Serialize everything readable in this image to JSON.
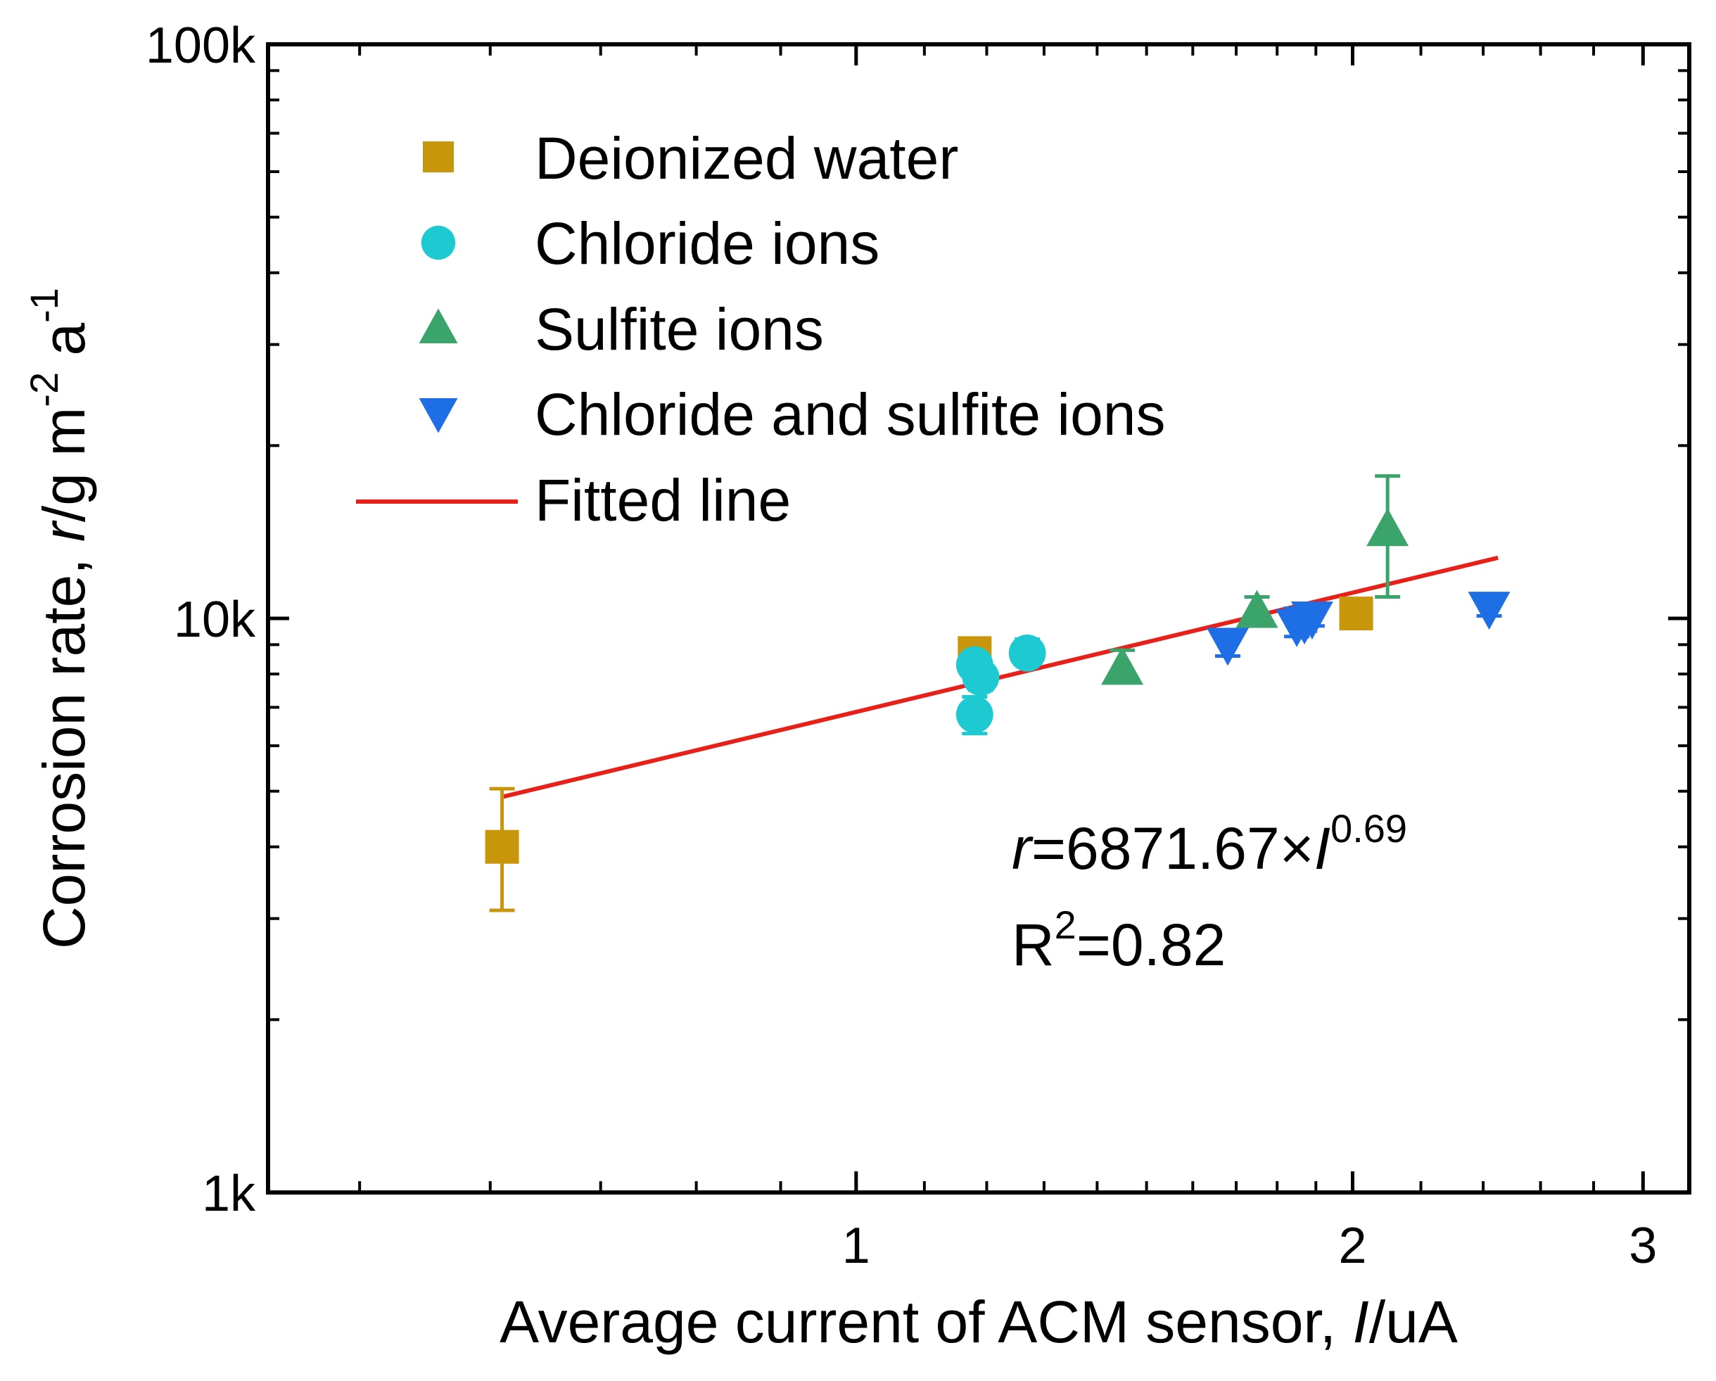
{
  "chart_data": {
    "type": "scatter",
    "scale": {
      "x": "log",
      "y": "log"
    },
    "xlim": [
      0.44,
      3.2
    ],
    "ylim": [
      1000,
      100000
    ],
    "xlabel_parts": [
      "Average current of ACM sensor, ",
      "I",
      "/uA"
    ],
    "ylabel_parts": [
      "Corrosion rate, ",
      "r",
      "/g m",
      "-2",
      " a",
      "-1"
    ],
    "x_ticks": [
      {
        "value": 1,
        "label": "1"
      },
      {
        "value": 2,
        "label": "2"
      },
      {
        "value": 3,
        "label": "3"
      }
    ],
    "y_ticks": [
      {
        "value": 1000,
        "label": "1k"
      },
      {
        "value": 10000,
        "label": "10k"
      },
      {
        "value": 100000,
        "label": "100k"
      }
    ],
    "series": [
      {
        "name": "Deionized water",
        "marker": "square",
        "color": "#c8960a",
        "points": [
          {
            "x": 0.61,
            "y": 4000,
            "err_low": 3100,
            "err_high": 5050
          },
          {
            "x": 1.18,
            "y": 8700,
            "err_low": 8300,
            "err_high": 9100
          },
          {
            "x": 2.01,
            "y": 10200,
            "err_low": 10000,
            "err_high": 10400
          }
        ]
      },
      {
        "name": "Chloride ions",
        "marker": "circle",
        "color": "#1ecad1",
        "points": [
          {
            "x": 1.18,
            "y": 6800,
            "err_low": 6300,
            "err_high": 7300
          },
          {
            "x": 1.18,
            "y": 8300,
            "err_low": 7900,
            "err_high": 8700
          },
          {
            "x": 1.19,
            "y": 7900,
            "err_low": 7500,
            "err_high": 8300
          },
          {
            "x": 1.27,
            "y": 8700,
            "err_low": 8300,
            "err_high": 9200
          }
        ]
      },
      {
        "name": "Sulfite ions",
        "marker": "triangle-up",
        "color": "#3aa46a",
        "points": [
          {
            "x": 1.45,
            "y": 8200,
            "err_low": 7800,
            "err_high": 8800
          },
          {
            "x": 1.75,
            "y": 10300,
            "err_low": 9700,
            "err_high": 10900
          },
          {
            "x": 2.1,
            "y": 14300,
            "err_low": 10900,
            "err_high": 17700
          }
        ]
      },
      {
        "name": "Chloride and sulfite ions",
        "marker": "triangle-down",
        "color": "#1e6ee6",
        "points": [
          {
            "x": 1.68,
            "y": 9000,
            "err_low": 8600,
            "err_high": 9400
          },
          {
            "x": 1.85,
            "y": 9700,
            "err_low": 9300,
            "err_high": 10100
          },
          {
            "x": 1.87,
            "y": 9800,
            "err_low": 9500,
            "err_high": 10200
          },
          {
            "x": 1.89,
            "y": 10000,
            "err_low": 9700,
            "err_high": 10300
          },
          {
            "x": 2.42,
            "y": 10400,
            "err_low": 10100,
            "err_high": 10700
          }
        ]
      }
    ],
    "fit": {
      "name": "Fitted line",
      "color": "#e8201a",
      "coefficient": 6871.67,
      "exponent": 0.69,
      "x_range": [
        0.61,
        2.45
      ]
    },
    "equation_parts": [
      "r",
      "=6871.67×",
      "I",
      "0.69"
    ],
    "r2_parts": [
      "R",
      "2",
      "=0.82"
    ]
  }
}
